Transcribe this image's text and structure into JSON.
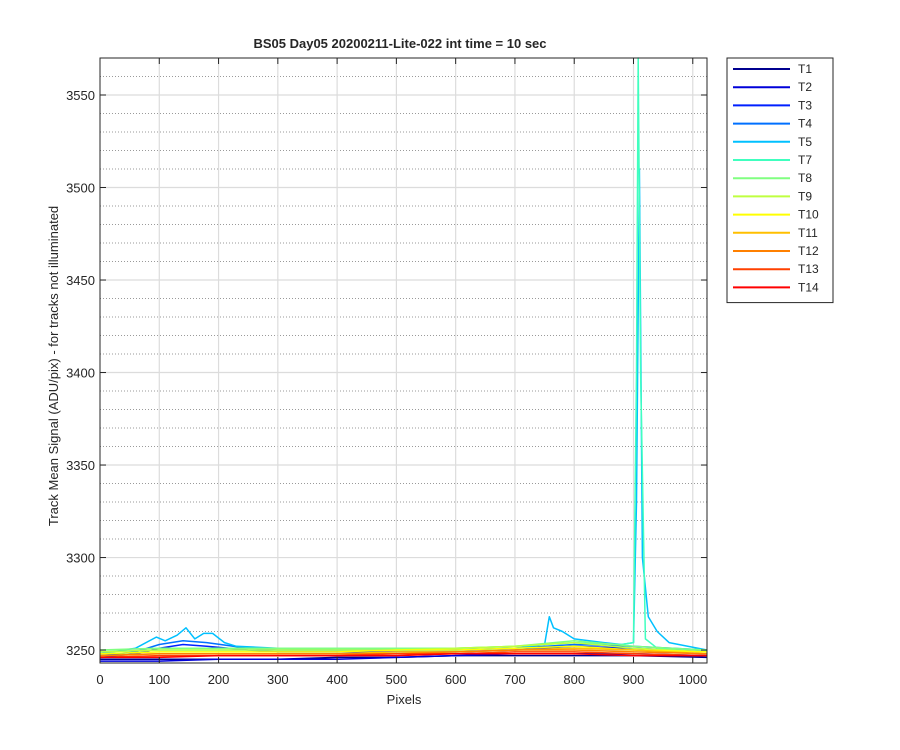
{
  "chart_data": {
    "type": "line",
    "title": "BS05 Day05 20200211-Lite-022 int time = 10 sec",
    "xlabel": "Pixels",
    "ylabel": "Track Mean Signal (ADU/pix) - for tracks not illuminated",
    "xlim": [
      0,
      1024
    ],
    "ylim": [
      3243,
      3570
    ],
    "xticks": [
      0,
      100,
      200,
      300,
      400,
      500,
      600,
      700,
      800,
      900,
      1000
    ],
    "yticks": [
      3250,
      3300,
      3350,
      3400,
      3450,
      3500,
      3550
    ],
    "grid": true,
    "minor_grid_y": true,
    "legend_position": "outside-right-top",
    "series": [
      {
        "name": "T1",
        "color": "#00008f",
        "x": [
          0,
          100,
          200,
          300,
          400,
          500,
          600,
          700,
          800,
          900,
          1024
        ],
        "y": [
          3245,
          3245,
          3245,
          3245,
          3246,
          3246,
          3247,
          3247,
          3247,
          3247,
          3246
        ]
      },
      {
        "name": "T2",
        "color": "#0000d9",
        "x": [
          0,
          100,
          200,
          300,
          400,
          500,
          600,
          700,
          800,
          900,
          1024
        ],
        "y": [
          3244,
          3244,
          3245,
          3245,
          3245,
          3246,
          3247,
          3248,
          3248,
          3248,
          3247
        ]
      },
      {
        "name": "T3",
        "color": "#0020ff",
        "x": [
          0,
          60,
          100,
          140,
          180,
          250,
          300,
          400,
          500,
          600,
          700,
          800,
          900,
          1024
        ],
        "y": [
          3246,
          3248,
          3251,
          3253,
          3252,
          3250,
          3249,
          3249,
          3249,
          3249,
          3250,
          3252,
          3251,
          3249
        ]
      },
      {
        "name": "T4",
        "color": "#0070ff",
        "x": [
          0,
          60,
          100,
          140,
          180,
          250,
          300,
          400,
          500,
          600,
          700,
          800,
          900,
          1024
        ],
        "y": [
          3247,
          3249,
          3253,
          3255,
          3254,
          3251,
          3250,
          3250,
          3250,
          3250,
          3251,
          3253,
          3252,
          3250
        ]
      },
      {
        "name": "T5",
        "color": "#00c0ff",
        "x": [
          0,
          60,
          95,
          110,
          130,
          145,
          160,
          175,
          190,
          210,
          230,
          300,
          400,
          500,
          600,
          700,
          750,
          758,
          765,
          780,
          800,
          850,
          880,
          900,
          905,
          910,
          915,
          925,
          940,
          960,
          1024
        ],
        "y": [
          3248,
          3251,
          3257,
          3255,
          3258,
          3262,
          3256,
          3259,
          3259,
          3254,
          3252,
          3251,
          3250,
          3250,
          3250,
          3251,
          3253,
          3268,
          3262,
          3260,
          3256,
          3254,
          3253,
          3254,
          3330,
          3510,
          3300,
          3268,
          3260,
          3254,
          3250
        ]
      },
      {
        "name": "T7",
        "color": "#40ffbf",
        "x": [
          0,
          100,
          200,
          300,
          400,
          500,
          600,
          700,
          800,
          880,
          900,
          905,
          908,
          912,
          920,
          940,
          1024
        ],
        "y": [
          3249,
          3250,
          3250,
          3250,
          3250,
          3250,
          3251,
          3252,
          3254,
          3253,
          3254,
          3400,
          3570,
          3400,
          3256,
          3251,
          3250
        ]
      },
      {
        "name": "T8",
        "color": "#80ff80",
        "x": [
          0,
          100,
          200,
          300,
          400,
          500,
          600,
          700,
          800,
          900,
          1024
        ],
        "y": [
          3250,
          3251,
          3251,
          3251,
          3251,
          3251,
          3251,
          3252,
          3255,
          3252,
          3250
        ]
      },
      {
        "name": "T9",
        "color": "#bfff40",
        "x": [
          0,
          100,
          200,
          300,
          400,
          500,
          600,
          700,
          800,
          900,
          1024
        ],
        "y": [
          3249,
          3250,
          3250,
          3250,
          3250,
          3250,
          3251,
          3252,
          3254,
          3251,
          3249
        ]
      },
      {
        "name": "T10",
        "color": "#ffff00",
        "x": [
          0,
          100,
          200,
          300,
          400,
          500,
          600,
          700,
          800,
          900,
          1024
        ],
        "y": [
          3248,
          3249,
          3249,
          3249,
          3249,
          3250,
          3250,
          3251,
          3252,
          3250,
          3249
        ]
      },
      {
        "name": "T11",
        "color": "#ffbf00",
        "x": [
          0,
          100,
          200,
          300,
          400,
          500,
          600,
          700,
          800,
          900,
          1024
        ],
        "y": [
          3247,
          3248,
          3248,
          3248,
          3248,
          3249,
          3249,
          3250,
          3251,
          3250,
          3248
        ]
      },
      {
        "name": "T12",
        "color": "#ff8000",
        "x": [
          0,
          100,
          200,
          300,
          400,
          500,
          600,
          700,
          800,
          900,
          1024
        ],
        "y": [
          3247,
          3248,
          3248,
          3248,
          3248,
          3248,
          3249,
          3250,
          3250,
          3249,
          3248
        ]
      },
      {
        "name": "T13",
        "color": "#ff4000",
        "x": [
          0,
          100,
          200,
          300,
          400,
          500,
          600,
          700,
          800,
          900,
          1024
        ],
        "y": [
          3246,
          3247,
          3247,
          3247,
          3247,
          3248,
          3248,
          3249,
          3249,
          3248,
          3247
        ]
      },
      {
        "name": "T14",
        "color": "#ff0000",
        "x": [
          0,
          100,
          200,
          300,
          400,
          500,
          600,
          700,
          800,
          900,
          1024
        ],
        "y": [
          3246,
          3246,
          3247,
          3247,
          3247,
          3247,
          3248,
          3248,
          3248,
          3247,
          3247
        ]
      }
    ]
  }
}
